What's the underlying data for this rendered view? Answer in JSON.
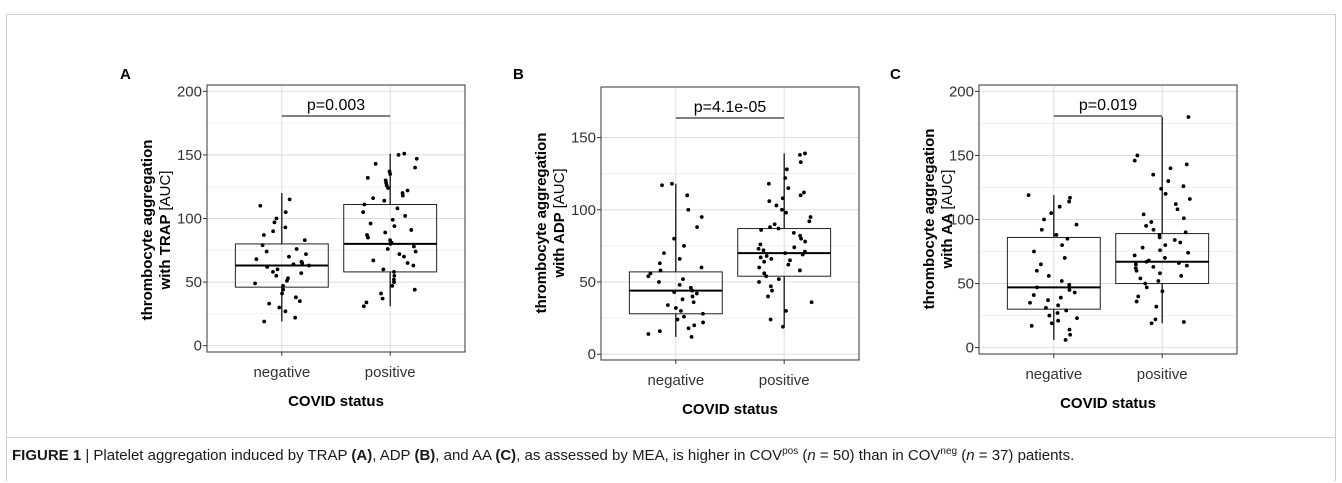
{
  "chart_data": [
    {
      "type": "box",
      "panel": "A",
      "ylabel_bold": "thrombocyte aggregation",
      "ylabel_line2_bold": "with TRAP",
      "ylabel_unit": "[AUC]",
      "xlabel": "COVID status",
      "categories": [
        "negative",
        "positive"
      ],
      "ylim": [
        -5,
        205
      ],
      "yticks": [
        0,
        50,
        100,
        150,
        200
      ],
      "grid": true,
      "pvalue": "p=0.003",
      "boxes": [
        {
          "category": "negative",
          "min": 19,
          "q1": 46,
          "median": 63,
          "q3": 80,
          "max": 120,
          "points": [
            19,
            22,
            27,
            30,
            33,
            35,
            38,
            41,
            44,
            47,
            49,
            51,
            53,
            55,
            57,
            58,
            60,
            62,
            63,
            64,
            65,
            66,
            68,
            70,
            72,
            74,
            76,
            79,
            83,
            87,
            90,
            93,
            97,
            100,
            105,
            110,
            115
          ]
        },
        {
          "category": "positive",
          "min": 31,
          "q1": 58,
          "median": 80,
          "q3": 111,
          "max": 151,
          "points": [
            31,
            34,
            37,
            41,
            44,
            47,
            50,
            52,
            55,
            58,
            60,
            63,
            65,
            67,
            70,
            72,
            74,
            76,
            78,
            80,
            81,
            83,
            85,
            87,
            89,
            91,
            94,
            96,
            99,
            102,
            105,
            108,
            111,
            114,
            116,
            118,
            120,
            122,
            124,
            126,
            128,
            130,
            132,
            135,
            137,
            140,
            143,
            147,
            150,
            151
          ]
        }
      ]
    },
    {
      "type": "box",
      "panel": "B",
      "ylabel_bold": "thrombocyte aggregation",
      "ylabel_line2_bold": "with ADP",
      "ylabel_unit": "[AUC]",
      "xlabel": "COVID status",
      "categories": [
        "negative",
        "positive"
      ],
      "ylim": [
        -4,
        185
      ],
      "yticks": [
        0,
        50,
        100,
        150
      ],
      "grid": true,
      "pvalue": "p=4.1e-05",
      "boxes": [
        {
          "category": "negative",
          "min": 12,
          "q1": 28,
          "median": 44,
          "q3": 57,
          "max": 118,
          "points": [
            12,
            14,
            16,
            18,
            20,
            22,
            24,
            26,
            28,
            30,
            32,
            34,
            36,
            38,
            40,
            42,
            43,
            44,
            46,
            48,
            50,
            52,
            54,
            56,
            58,
            60,
            63,
            66,
            70,
            75,
            80,
            88,
            95,
            100,
            110,
            117,
            118
          ]
        },
        {
          "category": "positive",
          "min": 19,
          "q1": 54,
          "median": 70,
          "q3": 87,
          "max": 139,
          "points": [
            19,
            24,
            30,
            36,
            40,
            44,
            47,
            50,
            52,
            54,
            56,
            58,
            60,
            62,
            64,
            65,
            66,
            67,
            68,
            69,
            70,
            71,
            72,
            73,
            74,
            76,
            78,
            80,
            82,
            84,
            86,
            87,
            88,
            90,
            92,
            95,
            98,
            100,
            103,
            106,
            108,
            110,
            112,
            115,
            118,
            122,
            128,
            133,
            138,
            139
          ]
        }
      ]
    },
    {
      "type": "box",
      "panel": "C",
      "ylabel_bold": "thrombocyte aggregation",
      "ylabel_line2_bold": "with AA",
      "ylabel_unit": "[AUC]",
      "xlabel": "COVID status",
      "categories": [
        "negative",
        "positive"
      ],
      "ylim": [
        -5,
        205
      ],
      "yticks": [
        0,
        50,
        100,
        150,
        200
      ],
      "grid": true,
      "pvalue": "p=0.019",
      "boxes": [
        {
          "category": "negative",
          "min": 6,
          "q1": 30,
          "median": 47,
          "q3": 86,
          "max": 119,
          "points": [
            6,
            10,
            14,
            17,
            19,
            21,
            23,
            25,
            27,
            29,
            31,
            33,
            35,
            37,
            39,
            41,
            43,
            45,
            47,
            49,
            52,
            56,
            60,
            65,
            70,
            75,
            80,
            85,
            88,
            92,
            96,
            100,
            105,
            110,
            114,
            117,
            119
          ]
        },
        {
          "category": "positive",
          "min": 19,
          "q1": 50,
          "median": 67,
          "q3": 89,
          "max": 180,
          "points": [
            19,
            20,
            22,
            32,
            36,
            40,
            44,
            47,
            50,
            52,
            54,
            56,
            58,
            60,
            62,
            63,
            64,
            65,
            66,
            67,
            68,
            70,
            72,
            74,
            76,
            78,
            80,
            82,
            84,
            86,
            88,
            90,
            92,
            95,
            98,
            101,
            104,
            108,
            112,
            116,
            120,
            124,
            126,
            130,
            135,
            140,
            143,
            146,
            150,
            180
          ]
        }
      ]
    }
  ],
  "caption": {
    "figure_label": "FIGURE 1",
    "separator": " | ",
    "part1": "Platelet aggregation induced by TRAP ",
    "ref_a": "(A)",
    "part2": ", ADP ",
    "ref_b": "(B)",
    "part3": ", and AA ",
    "ref_c": "(C)",
    "part4": ", as assessed by MEA, is higher in COV",
    "sup_pos": "pos",
    "part5": " (",
    "n_var": "n",
    "part6": " = 50) than in COV",
    "sup_neg": "neg",
    "part7": " (",
    "part8": " = 37) patients."
  }
}
